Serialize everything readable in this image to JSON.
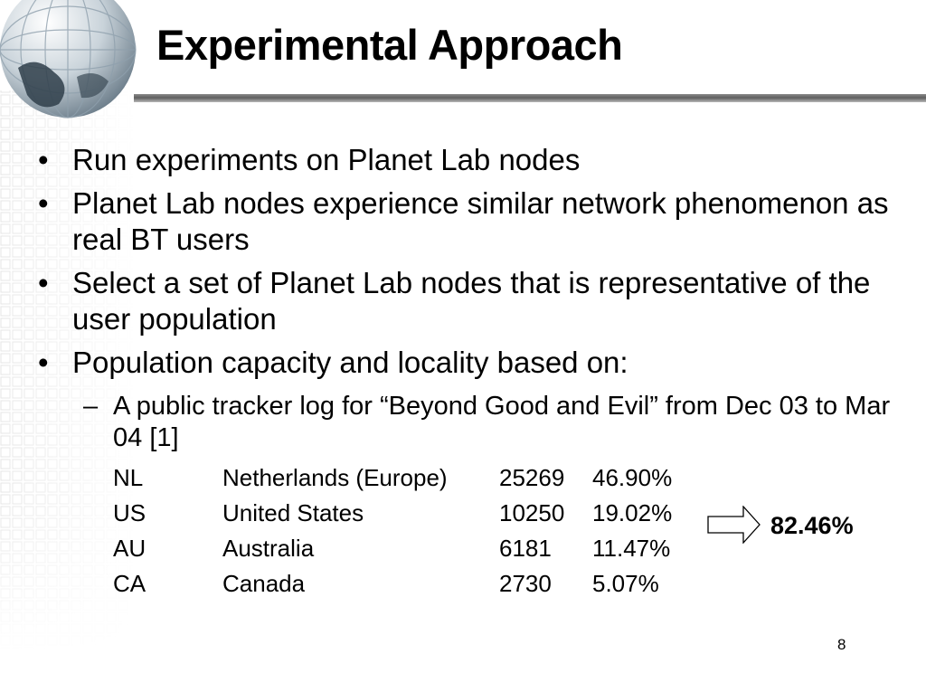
{
  "slide": {
    "title": "Experimental Approach",
    "bullets": [
      {
        "marker": "•",
        "text": "Run experiments on Planet Lab nodes"
      },
      {
        "marker": "•",
        "text": "Planet Lab nodes experience similar network phenomenon as real BT users"
      },
      {
        "marker": "•",
        "text": "Select a set of Planet Lab nodes that is representative of the user population"
      },
      {
        "marker": "•",
        "text": "Population capacity and locality based on:"
      }
    ],
    "sub_bullet": {
      "marker": "–",
      "text": "A public tracker log for “Beyond Good and Evil” from Dec 03 to Mar 04 [1]"
    },
    "table": {
      "rows": [
        {
          "code": "NL",
          "country": "Netherlands (Europe)",
          "count": "25269",
          "percent": "46.90%"
        },
        {
          "code": "US",
          "country": "United States",
          "count": "10250",
          "percent": "19.02%"
        },
        {
          "code": "AU",
          "country": "Australia",
          "count": "6181",
          "percent": "11.47%"
        },
        {
          "code": "CA",
          "country": "Canada",
          "count": "2730",
          "percent": "5.07%"
        }
      ]
    },
    "total": "82.46%",
    "page_number": "8"
  },
  "decor": {
    "globe_icon": "globe-icon",
    "arrow_icon": "right-arrow-icon",
    "accent": "#5f5f5f"
  }
}
